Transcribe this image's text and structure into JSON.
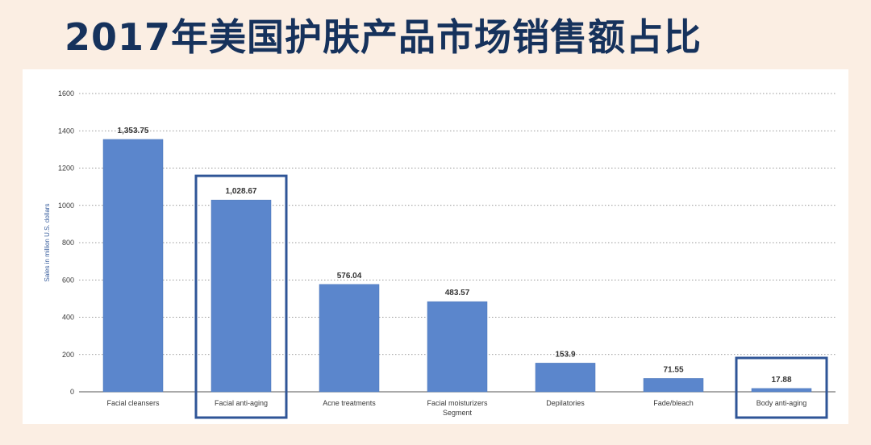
{
  "title": "2017年美国护肤产品市场销售额占比",
  "chart_data": {
    "type": "bar",
    "categories": [
      "Facial cleansers",
      "Facial anti-aging",
      "Acne treatments",
      "Facial moisturizers",
      "Depilatories",
      "Fade/bleach",
      "Body anti-aging"
    ],
    "values": [
      1353.75,
      1028.67,
      576.04,
      483.57,
      153.9,
      71.55,
      17.88
    ],
    "value_labels": [
      "1,353.75",
      "1,028.67",
      "576.04",
      "483.57",
      "153.9",
      "71.55",
      "17.88"
    ],
    "xlabel": "Segment",
    "ylabel": "Sales in million U.S. dollars",
    "ylim": [
      0,
      1600
    ],
    "yticks": [
      0,
      200,
      400,
      600,
      800,
      1000,
      1200,
      1400,
      1600
    ],
    "grid": true,
    "bar_color": "#5b86cc",
    "highlight_color": "#2f5597",
    "highlighted_categories": [
      "Facial anti-aging",
      "Body anti-aging"
    ]
  }
}
